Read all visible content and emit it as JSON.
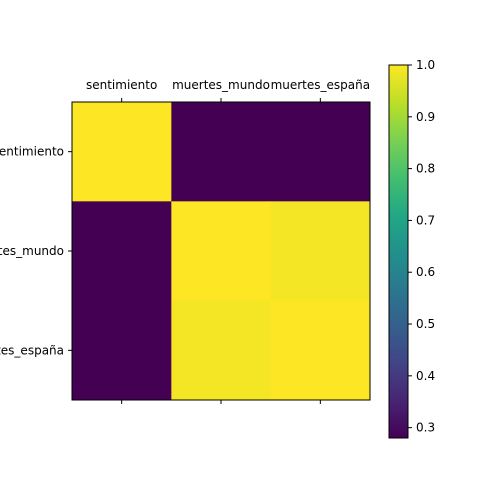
{
  "chart_data": {
    "type": "heatmap",
    "title": "",
    "xlabel": "",
    "ylabel": "",
    "x_categories": [
      "sentimiento",
      "muertes_mundo",
      "muertes_españa"
    ],
    "y_categories": [
      "sentimiento",
      "muertes_mundo",
      "muertes_españa"
    ],
    "x_tick_position": "top",
    "values": [
      [
        1.0,
        0.28,
        0.28
      ],
      [
        0.28,
        1.0,
        0.99
      ],
      [
        0.28,
        0.99,
        1.0
      ]
    ],
    "colormap": "viridis",
    "colorbar": {
      "min": 0.28,
      "max": 1.0,
      "ticks": [
        0.3,
        0.4,
        0.5,
        0.6,
        0.7,
        0.8,
        0.9,
        1.0
      ],
      "tick_labels": [
        "0.3",
        "0.4",
        "0.5",
        "0.6",
        "0.7",
        "0.8",
        "0.9",
        "1.0"
      ]
    },
    "grid": false
  }
}
